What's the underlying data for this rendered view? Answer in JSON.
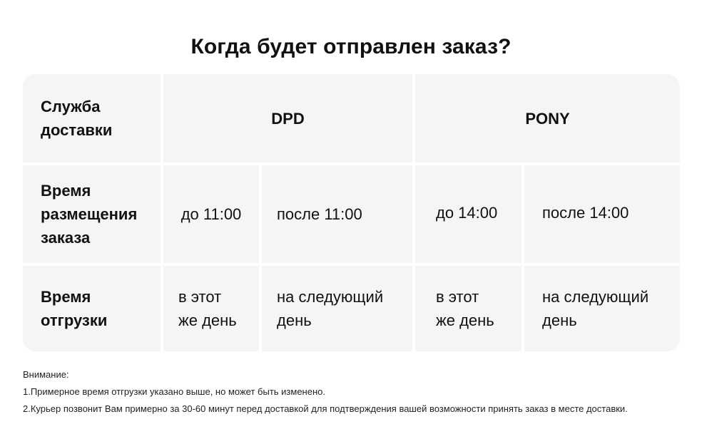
{
  "title": "Когда будет отправлен заказ?",
  "table": {
    "header": {
      "label": "Служба\nдоставки",
      "services": [
        "DPD",
        "PONY"
      ]
    },
    "order_time": {
      "label": "Время\nразмещения\nзаказа",
      "values": [
        "до 11:00",
        "после 11:00",
        "до 14:00",
        "после 14:00"
      ]
    },
    "shipping_time": {
      "label": "Время\nотгрузки",
      "values": [
        "в этот\nже день",
        "на следующий\nдень",
        "в этот\nже день",
        "на следующий\nдень"
      ]
    }
  },
  "notes": {
    "heading": "Внимание:",
    "items": [
      "1.Примерное время отгрузки указано выше, но может быть изменено.",
      "2.Курьер позвонит Вам примерно за 30-60 минут перед доставкой для подтверждения вашей возможности принять заказ в месте доставки."
    ]
  }
}
